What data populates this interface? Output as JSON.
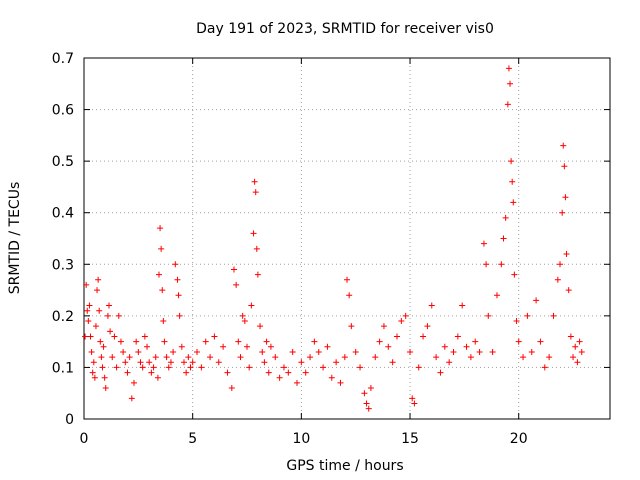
{
  "chart_data": {
    "type": "scatter",
    "title": "Day 191 of 2023, SRMTID for receiver vis0",
    "xlabel": "GPS time / hours",
    "ylabel": "SRMTID / TECUs",
    "xlim": [
      0,
      24.2
    ],
    "ylim": [
      0,
      0.7
    ],
    "xticks": [
      0,
      5,
      10,
      15,
      20
    ],
    "yticks": [
      0,
      0.1,
      0.2,
      0.3,
      0.4,
      0.5,
      0.6,
      0.7
    ],
    "xtick_labels": [
      "0",
      "5",
      "10",
      "15",
      "20"
    ],
    "ytick_labels": [
      "0",
      "0.1",
      "0.2",
      "0.3",
      "0.4",
      "0.5",
      "0.6",
      "0.7"
    ],
    "grid": true,
    "marker": "+",
    "color": "#ff0000",
    "series": [
      {
        "name": "vis0",
        "points": [
          [
            0.05,
            0.16
          ],
          [
            0.1,
            0.26
          ],
          [
            0.15,
            0.21
          ],
          [
            0.2,
            0.19
          ],
          [
            0.25,
            0.22
          ],
          [
            0.3,
            0.16
          ],
          [
            0.35,
            0.13
          ],
          [
            0.4,
            0.09
          ],
          [
            0.45,
            0.11
          ],
          [
            0.5,
            0.08
          ],
          [
            0.55,
            0.18
          ],
          [
            0.6,
            0.25
          ],
          [
            0.65,
            0.27
          ],
          [
            0.7,
            0.21
          ],
          [
            0.75,
            0.15
          ],
          [
            0.8,
            0.12
          ],
          [
            0.85,
            0.1
          ],
          [
            0.9,
            0.14
          ],
          [
            0.95,
            0.08
          ],
          [
            1.0,
            0.06
          ],
          [
            1.1,
            0.2
          ],
          [
            1.15,
            0.22
          ],
          [
            1.2,
            0.17
          ],
          [
            1.3,
            0.12
          ],
          [
            1.4,
            0.16
          ],
          [
            1.5,
            0.1
          ],
          [
            1.6,
            0.2
          ],
          [
            1.7,
            0.15
          ],
          [
            1.8,
            0.13
          ],
          [
            1.9,
            0.11
          ],
          [
            2.0,
            0.09
          ],
          [
            2.1,
            0.12
          ],
          [
            2.2,
            0.04
          ],
          [
            2.3,
            0.07
          ],
          [
            2.4,
            0.15
          ],
          [
            2.5,
            0.13
          ],
          [
            2.6,
            0.11
          ],
          [
            2.7,
            0.1
          ],
          [
            2.8,
            0.16
          ],
          [
            2.9,
            0.14
          ],
          [
            3.0,
            0.11
          ],
          [
            3.1,
            0.09
          ],
          [
            3.2,
            0.1
          ],
          [
            3.3,
            0.12
          ],
          [
            3.4,
            0.08
          ],
          [
            3.45,
            0.28
          ],
          [
            3.5,
            0.37
          ],
          [
            3.55,
            0.33
          ],
          [
            3.6,
            0.25
          ],
          [
            3.65,
            0.19
          ],
          [
            3.7,
            0.15
          ],
          [
            3.8,
            0.12
          ],
          [
            3.9,
            0.1
          ],
          [
            4.0,
            0.11
          ],
          [
            4.1,
            0.13
          ],
          [
            4.2,
            0.3
          ],
          [
            4.3,
            0.27
          ],
          [
            4.35,
            0.24
          ],
          [
            4.4,
            0.2
          ],
          [
            4.5,
            0.14
          ],
          [
            4.6,
            0.11
          ],
          [
            4.7,
            0.09
          ],
          [
            4.8,
            0.12
          ],
          [
            4.9,
            0.1
          ],
          [
            5.0,
            0.11
          ],
          [
            5.2,
            0.13
          ],
          [
            5.4,
            0.1
          ],
          [
            5.6,
            0.15
          ],
          [
            5.8,
            0.12
          ],
          [
            6.0,
            0.16
          ],
          [
            6.2,
            0.11
          ],
          [
            6.4,
            0.14
          ],
          [
            6.6,
            0.09
          ],
          [
            6.8,
            0.06
          ],
          [
            6.9,
            0.29
          ],
          [
            7.0,
            0.26
          ],
          [
            7.1,
            0.15
          ],
          [
            7.2,
            0.12
          ],
          [
            7.3,
            0.2
          ],
          [
            7.4,
            0.19
          ],
          [
            7.5,
            0.14
          ],
          [
            7.6,
            0.1
          ],
          [
            7.7,
            0.22
          ],
          [
            7.8,
            0.36
          ],
          [
            7.85,
            0.46
          ],
          [
            7.9,
            0.44
          ],
          [
            7.95,
            0.33
          ],
          [
            8.0,
            0.28
          ],
          [
            8.1,
            0.18
          ],
          [
            8.2,
            0.13
          ],
          [
            8.3,
            0.11
          ],
          [
            8.4,
            0.15
          ],
          [
            8.5,
            0.09
          ],
          [
            8.6,
            0.14
          ],
          [
            8.8,
            0.12
          ],
          [
            9.0,
            0.08
          ],
          [
            9.2,
            0.1
          ],
          [
            9.4,
            0.09
          ],
          [
            9.6,
            0.13
          ],
          [
            9.8,
            0.07
          ],
          [
            10.0,
            0.11
          ],
          [
            10.2,
            0.09
          ],
          [
            10.4,
            0.12
          ],
          [
            10.6,
            0.15
          ],
          [
            10.8,
            0.13
          ],
          [
            11.0,
            0.1
          ],
          [
            11.2,
            0.14
          ],
          [
            11.4,
            0.08
          ],
          [
            11.6,
            0.11
          ],
          [
            11.8,
            0.07
          ],
          [
            12.0,
            0.12
          ],
          [
            12.1,
            0.27
          ],
          [
            12.2,
            0.24
          ],
          [
            12.3,
            0.18
          ],
          [
            12.5,
            0.13
          ],
          [
            12.7,
            0.1
          ],
          [
            12.9,
            0.05
          ],
          [
            13.0,
            0.03
          ],
          [
            13.1,
            0.02
          ],
          [
            13.2,
            0.06
          ],
          [
            13.4,
            0.12
          ],
          [
            13.6,
            0.15
          ],
          [
            13.8,
            0.18
          ],
          [
            14.0,
            0.14
          ],
          [
            14.2,
            0.11
          ],
          [
            14.4,
            0.16
          ],
          [
            14.6,
            0.19
          ],
          [
            14.8,
            0.2
          ],
          [
            15.0,
            0.13
          ],
          [
            15.1,
            0.04
          ],
          [
            15.2,
            0.03
          ],
          [
            15.4,
            0.1
          ],
          [
            15.6,
            0.16
          ],
          [
            15.8,
            0.18
          ],
          [
            16.0,
            0.22
          ],
          [
            16.2,
            0.12
          ],
          [
            16.4,
            0.09
          ],
          [
            16.6,
            0.14
          ],
          [
            16.8,
            0.11
          ],
          [
            17.0,
            0.13
          ],
          [
            17.2,
            0.16
          ],
          [
            17.4,
            0.22
          ],
          [
            17.6,
            0.14
          ],
          [
            17.8,
            0.12
          ],
          [
            18.0,
            0.15
          ],
          [
            18.2,
            0.13
          ],
          [
            18.4,
            0.34
          ],
          [
            18.5,
            0.3
          ],
          [
            18.6,
            0.2
          ],
          [
            18.8,
            0.13
          ],
          [
            19.0,
            0.24
          ],
          [
            19.2,
            0.3
          ],
          [
            19.3,
            0.35
          ],
          [
            19.4,
            0.39
          ],
          [
            19.5,
            0.61
          ],
          [
            19.55,
            0.68
          ],
          [
            19.6,
            0.65
          ],
          [
            19.65,
            0.5
          ],
          [
            19.7,
            0.46
          ],
          [
            19.75,
            0.42
          ],
          [
            19.8,
            0.28
          ],
          [
            19.9,
            0.19
          ],
          [
            20.0,
            0.15
          ],
          [
            20.2,
            0.12
          ],
          [
            20.4,
            0.2
          ],
          [
            20.6,
            0.13
          ],
          [
            20.8,
            0.23
          ],
          [
            21.0,
            0.15
          ],
          [
            21.2,
            0.1
          ],
          [
            21.4,
            0.12
          ],
          [
            21.6,
            0.2
          ],
          [
            21.8,
            0.27
          ],
          [
            21.9,
            0.3
          ],
          [
            22.0,
            0.4
          ],
          [
            22.05,
            0.53
          ],
          [
            22.1,
            0.49
          ],
          [
            22.15,
            0.43
          ],
          [
            22.2,
            0.32
          ],
          [
            22.3,
            0.25
          ],
          [
            22.4,
            0.16
          ],
          [
            22.5,
            0.12
          ],
          [
            22.6,
            0.14
          ],
          [
            22.7,
            0.11
          ],
          [
            22.8,
            0.15
          ],
          [
            22.9,
            0.13
          ]
        ]
      }
    ]
  }
}
